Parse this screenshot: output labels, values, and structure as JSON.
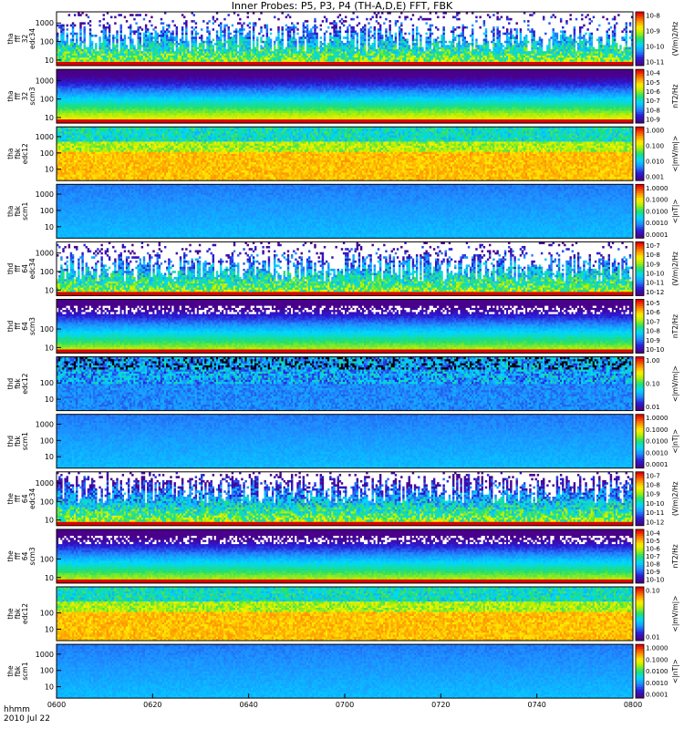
{
  "title": "Inner Probes: P5, P3, P4 (TH-A,D,E) FFT, FBK",
  "footer": {
    "axis_label": "hhmm",
    "date": "2010 Jul 22"
  },
  "colors": {
    "frame": "#000000",
    "background": "#ffffff"
  },
  "chart_data": {
    "type": "heatmap",
    "x_ticks": [
      "0600",
      "0620",
      "0640",
      "0700",
      "0720",
      "0740",
      "0800"
    ],
    "x_range": [
      "06:00",
      "08:00"
    ],
    "panels": [
      {
        "label_lines": [
          "tha",
          "fff",
          "32",
          "edc34"
        ],
        "y_ticks": [
          "1000",
          "100",
          "10"
        ],
        "ylim": [
          5,
          4000
        ],
        "log_y": true,
        "cb_ticks": [
          "10^-8",
          "10^-9",
          "10^-10",
          "10^-11"
        ],
        "cb_label": "(V/m)^2/Hz",
        "style": "sparse"
      },
      {
        "label_lines": [
          "tha",
          "fff",
          "32",
          "scm3"
        ],
        "y_ticks": [
          "1000",
          "100",
          "10"
        ],
        "ylim": [
          5,
          4000
        ],
        "log_y": true,
        "cb_ticks": [
          "10^-4",
          "10^-5",
          "10^-6",
          "10^-7",
          "10^-8",
          "10^-9"
        ],
        "cb_label": "nT^2/Hz",
        "style": "bands"
      },
      {
        "label_lines": [
          "tha",
          "fbk",
          "edc12"
        ],
        "y_ticks": [
          "1000",
          "100",
          "10"
        ],
        "ylim": [
          2,
          4000
        ],
        "log_y": true,
        "cb_ticks": [
          "1.000",
          "0.100",
          "0.010",
          "0.001"
        ],
        "cb_label": "<|mV/m|>",
        "style": "fbk_e"
      },
      {
        "label_lines": [
          "tha",
          "fbk",
          "scm1"
        ],
        "y_ticks": [
          "1000",
          "100",
          "10"
        ],
        "ylim": [
          2,
          4000
        ],
        "log_y": true,
        "cb_ticks": [
          "1.0000",
          "0.1000",
          "0.0100",
          "0.0010",
          "0.0001"
        ],
        "cb_label": "<|nT|>",
        "style": "fbk_b"
      },
      {
        "label_lines": [
          "thd",
          "fff",
          "64",
          "edc34"
        ],
        "y_ticks": [
          "1000",
          "100",
          "10"
        ],
        "ylim": [
          5,
          4000
        ],
        "log_y": true,
        "cb_ticks": [
          "10^-7",
          "10^-8",
          "10^-9",
          "10^-10",
          "10^-11",
          "10^-12"
        ],
        "cb_label": "(V/m)^2/Hz",
        "style": "sparse"
      },
      {
        "label_lines": [
          "thd",
          "fff",
          "64",
          "scm3"
        ],
        "y_ticks": [
          "100",
          "10"
        ],
        "ylim": [
          5,
          4000
        ],
        "log_y": true,
        "cb_ticks": [
          "10^-5",
          "10^-6",
          "10^-7",
          "10^-8",
          "10^-9",
          "10^-10"
        ],
        "cb_label": "nT^2/Hz",
        "style": "bands_dots"
      },
      {
        "label_lines": [
          "thd",
          "fbk",
          "edc12"
        ],
        "y_ticks": [
          "100",
          "10"
        ],
        "ylim": [
          2,
          4000
        ],
        "log_y": true,
        "cb_ticks": [
          "1.00",
          "0.10",
          "0.01"
        ],
        "cb_label": "<|mV/m|>",
        "style": "fbk_e_dark"
      },
      {
        "label_lines": [
          "thd",
          "fbk",
          "scm1"
        ],
        "y_ticks": [
          "1000",
          "100",
          "10"
        ],
        "ylim": [
          2,
          4000
        ],
        "log_y": true,
        "cb_ticks": [
          "1.0000",
          "0.1000",
          "0.0100",
          "0.0010",
          "0.0001"
        ],
        "cb_label": "<|nT|>",
        "style": "fbk_b"
      },
      {
        "label_lines": [
          "the",
          "fff",
          "64",
          "edc34"
        ],
        "y_ticks": [
          "1000",
          "100",
          "10"
        ],
        "ylim": [
          5,
          4000
        ],
        "log_y": true,
        "cb_ticks": [
          "10^-7",
          "10^-8",
          "10^-9",
          "10^-10",
          "10^-11",
          "10^-12"
        ],
        "cb_label": "(V/m)^2/Hz",
        "style": "sparse_dense"
      },
      {
        "label_lines": [
          "the",
          "fff",
          "64",
          "scm3"
        ],
        "y_ticks": [
          "100",
          "10"
        ],
        "ylim": [
          5,
          4000
        ],
        "log_y": true,
        "cb_ticks": [
          "10^-4",
          "10^-5",
          "10^-6",
          "10^-7",
          "10^-8",
          "10^-9",
          "10^-10"
        ],
        "cb_label": "nT^2/Hz",
        "style": "bands_dots"
      },
      {
        "label_lines": [
          "the",
          "fbk",
          "edc12"
        ],
        "y_ticks": [
          "100",
          "10"
        ],
        "ylim": [
          2,
          4000
        ],
        "log_y": true,
        "cb_ticks": [
          "0.10",
          "0.01"
        ],
        "cb_label": "<|mV/m|>",
        "style": "fbk_e"
      },
      {
        "label_lines": [
          "the",
          "fbk",
          "scm1"
        ],
        "y_ticks": [
          "1000",
          "100",
          "10"
        ],
        "ylim": [
          2,
          4000
        ],
        "log_y": true,
        "cb_ticks": [
          "1.0000",
          "0.1000",
          "0.0100",
          "0.0010",
          "0.0001"
        ],
        "cb_label": "<|nT|>",
        "style": "fbk_b"
      }
    ]
  }
}
